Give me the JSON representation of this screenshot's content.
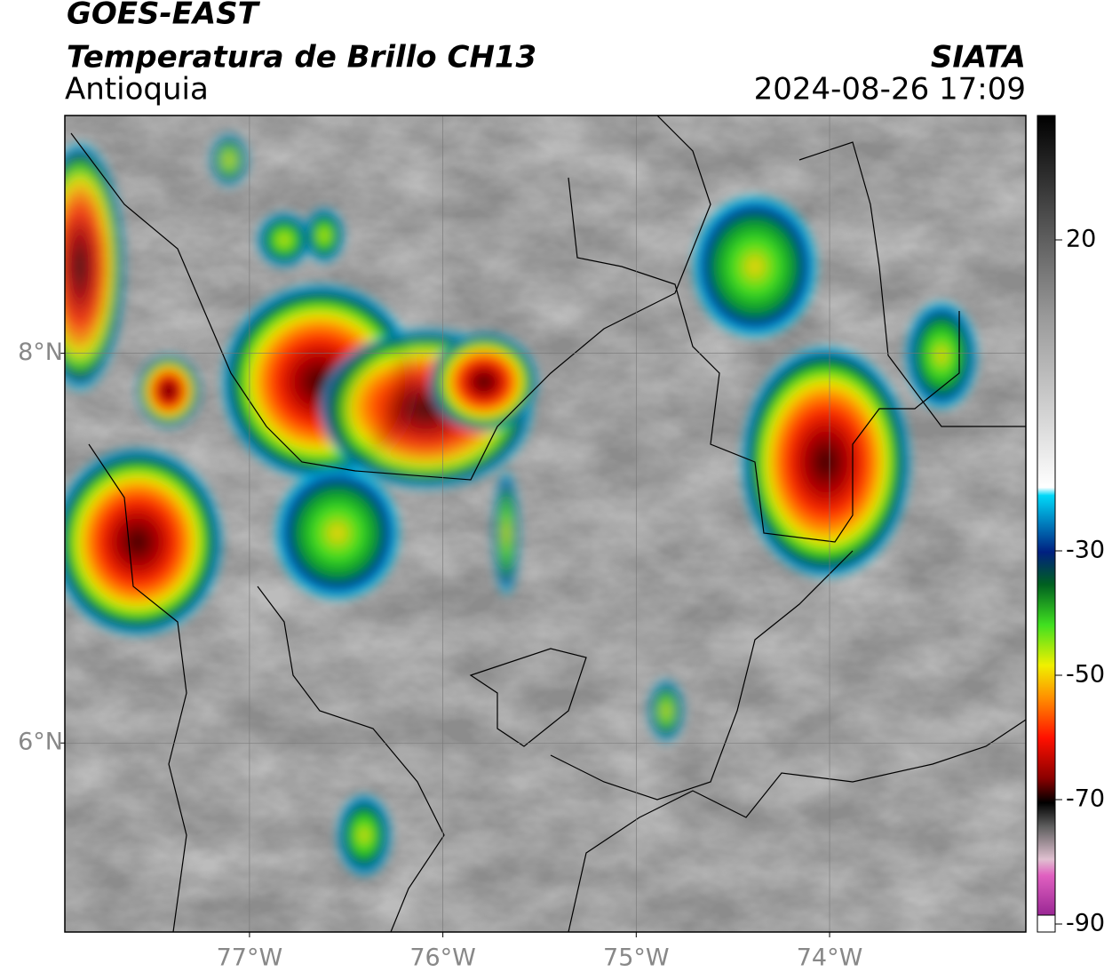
{
  "header": {
    "title": "GOES-EAST",
    "subtitle": "Temperatura de Brillo CH13",
    "region": "Antioquia",
    "source": "SIATA",
    "timestamp": "2024-08-26 17:09"
  },
  "map": {
    "xlim": [
      -77.955,
      -72.985
    ],
    "ylim": [
      5.03,
      9.22
    ],
    "xticks": [
      {
        "value": -77,
        "label": "77°W"
      },
      {
        "value": -76,
        "label": "76°W"
      },
      {
        "value": -75,
        "label": "75°W"
      },
      {
        "value": -74,
        "label": "74°W"
      }
    ],
    "yticks": [
      {
        "value": 8,
        "label": "8°N"
      },
      {
        "value": 6,
        "label": "6°N"
      }
    ],
    "grid": true
  },
  "colorbar": {
    "range": [
      -90,
      40
    ],
    "ticks": [
      20,
      -30,
      -50,
      -70,
      -90
    ]
  }
}
